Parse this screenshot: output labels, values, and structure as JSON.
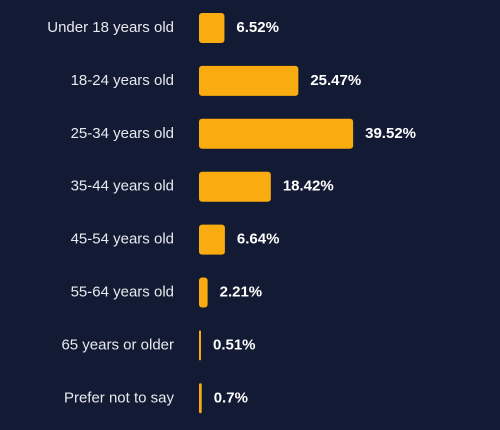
{
  "chart_data": {
    "type": "bar",
    "orientation": "horizontal",
    "categories": [
      "Under 18 years old",
      "18-24 years old",
      "25-34 years old",
      "35-44 years old",
      "45-54 years old",
      "55-64 years old",
      "65 years or older",
      "Prefer not to say"
    ],
    "values": [
      6.52,
      25.47,
      39.52,
      18.42,
      6.64,
      2.21,
      0.51,
      0.7
    ],
    "value_labels": [
      "6.52%",
      "25.47%",
      "39.52%",
      "18.42%",
      "6.64%",
      "2.21%",
      "0.51%",
      "0.7%"
    ],
    "color": "#f9ab10"
  }
}
